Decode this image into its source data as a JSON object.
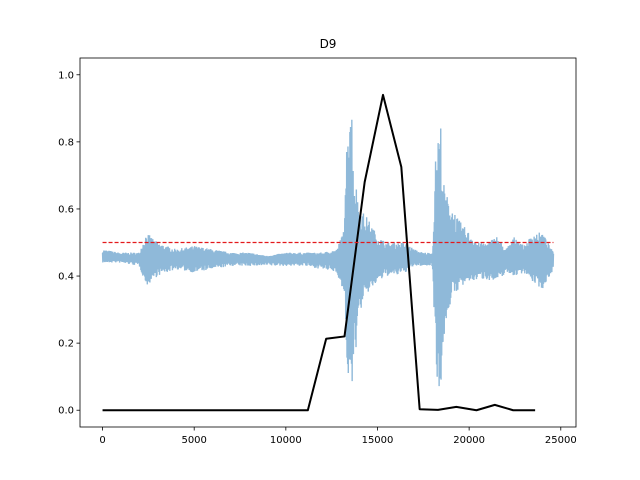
{
  "chart_data": {
    "type": "line",
    "title": "D9",
    "xlabel": "",
    "ylabel": "",
    "xlim": [
      -1230,
      25830
    ],
    "ylim": [
      -0.05,
      1.05
    ],
    "xticks": [
      0,
      5000,
      10000,
      15000,
      20000,
      25000
    ],
    "xtick_labels": [
      "0",
      "5000",
      "10000",
      "15000",
      "20000",
      "25000"
    ],
    "yticks": [
      0.0,
      0.2,
      0.4,
      0.6,
      0.8,
      1.0
    ],
    "ytick_labels": [
      "0.0",
      "0.2",
      "0.4",
      "0.6",
      "0.8",
      "1.0"
    ],
    "grid": false,
    "series": [
      {
        "style": "waveform",
        "color": "#8fb9d9",
        "x_range": [
          0,
          24600
        ],
        "center": 0.455,
        "envelope": {
          "x": [
            0,
            900,
            2000,
            2400,
            3000,
            4000,
            5000,
            6000,
            7000,
            8000,
            9000,
            10000,
            11000,
            12000,
            12800,
            13200,
            13400,
            13550,
            13700,
            13900,
            14100,
            14500,
            15000,
            15500,
            16000,
            16500,
            17000,
            17500,
            18000,
            18200,
            18450,
            18600,
            18800,
            19000,
            19400,
            20000,
            20500,
            21000,
            21500,
            22000,
            22500,
            23000,
            23500,
            24000,
            24600
          ],
          "upper": [
            0.48,
            0.47,
            0.47,
            0.53,
            0.5,
            0.48,
            0.49,
            0.48,
            0.47,
            0.47,
            0.46,
            0.47,
            0.47,
            0.47,
            0.48,
            0.55,
            0.94,
            1.0,
            0.72,
            0.65,
            0.6,
            0.57,
            0.52,
            0.5,
            0.5,
            0.5,
            0.48,
            0.47,
            0.47,
            0.8,
            0.86,
            0.68,
            0.64,
            0.62,
            0.57,
            0.53,
            0.5,
            0.5,
            0.52,
            0.48,
            0.52,
            0.49,
            0.53,
            0.53,
            0.47
          ],
          "lower": [
            0.44,
            0.44,
            0.43,
            0.37,
            0.4,
            0.42,
            0.41,
            0.42,
            0.43,
            0.43,
            0.43,
            0.43,
            0.43,
            0.42,
            0.41,
            0.33,
            0.06,
            0.0,
            0.12,
            0.22,
            0.3,
            0.35,
            0.38,
            0.4,
            0.4,
            0.41,
            0.43,
            0.43,
            0.43,
            0.12,
            0.02,
            0.2,
            0.28,
            0.32,
            0.36,
            0.38,
            0.39,
            0.39,
            0.38,
            0.41,
            0.4,
            0.41,
            0.38,
            0.36,
            0.42
          ]
        }
      },
      {
        "style": "solid",
        "color": "#000000",
        "x": [
          0,
          1000,
          2000,
          3000,
          4000,
          5000,
          6000,
          7000,
          8000,
          9000,
          10000,
          11200,
          12200,
          13200,
          14300,
          15300,
          16300,
          17300,
          18300,
          19300,
          20400,
          21400,
          22400,
          23600
        ],
        "y": [
          0,
          0,
          0,
          0,
          0,
          0,
          0,
          0,
          0,
          0,
          0,
          0,
          0.213,
          0.22,
          0.68,
          0.94,
          0.725,
          0.003,
          0.001,
          0.01,
          0.0,
          0.016,
          0.0,
          0.0
        ]
      },
      {
        "style": "dashed",
        "color": "#e31a1c",
        "x": [
          0,
          24600
        ],
        "y": [
          0.5,
          0.5
        ]
      }
    ]
  }
}
